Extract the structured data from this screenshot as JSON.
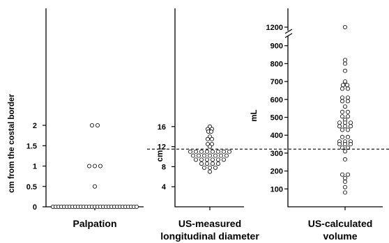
{
  "chart_data": [
    {
      "type": "scatter",
      "title": "",
      "xlabel": "Palpation",
      "ylabel": "cm from the costal border",
      "yticks": [
        "0",
        "0.5",
        "1",
        "1.5",
        "2"
      ],
      "ylim": [
        0,
        5.2
      ],
      "reference_line": null,
      "points": [
        {
          "x": -4,
          "y": 2
        },
        {
          "x": 4,
          "y": 2
        },
        {
          "x": -8,
          "y": 1
        },
        {
          "x": 0,
          "y": 1
        },
        {
          "x": 8,
          "y": 1
        },
        {
          "x": 0,
          "y": 0.5
        },
        {
          "x": -60,
          "y": 0
        },
        {
          "x": -56,
          "y": 0
        },
        {
          "x": -52,
          "y": 0
        },
        {
          "x": -48,
          "y": 0
        },
        {
          "x": -44,
          "y": 0
        },
        {
          "x": -40,
          "y": 0
        },
        {
          "x": -36,
          "y": 0
        },
        {
          "x": -32,
          "y": 0
        },
        {
          "x": -28,
          "y": 0
        },
        {
          "x": -24,
          "y": 0
        },
        {
          "x": -20,
          "y": 0
        },
        {
          "x": -16,
          "y": 0
        },
        {
          "x": -12,
          "y": 0
        },
        {
          "x": -8,
          "y": 0
        },
        {
          "x": -4,
          "y": 0
        },
        {
          "x": 0,
          "y": 0
        },
        {
          "x": 4,
          "y": 0
        },
        {
          "x": 8,
          "y": 0
        },
        {
          "x": 12,
          "y": 0
        },
        {
          "x": 16,
          "y": 0
        },
        {
          "x": 20,
          "y": 0
        },
        {
          "x": 24,
          "y": 0
        },
        {
          "x": 28,
          "y": 0
        },
        {
          "x": 32,
          "y": 0
        },
        {
          "x": 36,
          "y": 0
        },
        {
          "x": 40,
          "y": 0
        },
        {
          "x": 44,
          "y": 0
        },
        {
          "x": 48,
          "y": 0
        },
        {
          "x": 52,
          "y": 0
        },
        {
          "x": 56,
          "y": 0
        },
        {
          "x": 60,
          "y": 0
        }
      ]
    },
    {
      "type": "scatter",
      "title": "",
      "xlabel": "US-measured longitudinal diameter",
      "ylabel": "cm",
      "yticks": [
        "4",
        "8",
        "12",
        "16"
      ],
      "ylim": [
        0,
        36
      ],
      "reference_line": 11.5,
      "points": [
        {
          "x": 0,
          "y": 16
        },
        {
          "x": -3,
          "y": 15.5
        },
        {
          "x": 3,
          "y": 15.5
        },
        {
          "x": -2,
          "y": 15
        },
        {
          "x": 2,
          "y": 15
        },
        {
          "x": 0,
          "y": 14
        },
        {
          "x": -3,
          "y": 13.5
        },
        {
          "x": 3,
          "y": 13.5
        },
        {
          "x": -3,
          "y": 12.5
        },
        {
          "x": 3,
          "y": 12.5
        },
        {
          "x": 0,
          "y": 12
        },
        {
          "x": -28,
          "y": 11
        },
        {
          "x": -20,
          "y": 11
        },
        {
          "x": -12,
          "y": 11
        },
        {
          "x": -4,
          "y": 11
        },
        {
          "x": 4,
          "y": 11
        },
        {
          "x": 12,
          "y": 11
        },
        {
          "x": 20,
          "y": 11
        },
        {
          "x": 28,
          "y": 11
        },
        {
          "x": -24,
          "y": 10.2
        },
        {
          "x": -16,
          "y": 10.2
        },
        {
          "x": -8,
          "y": 10.2
        },
        {
          "x": 0,
          "y": 10.2
        },
        {
          "x": 8,
          "y": 10.2
        },
        {
          "x": 16,
          "y": 10.2
        },
        {
          "x": 24,
          "y": 10.2
        },
        {
          "x": -20,
          "y": 9.4
        },
        {
          "x": -12,
          "y": 9.4
        },
        {
          "x": -4,
          "y": 9.4
        },
        {
          "x": 4,
          "y": 9.4
        },
        {
          "x": 12,
          "y": 9.4
        },
        {
          "x": 20,
          "y": 9.4
        },
        {
          "x": -12,
          "y": 8.6
        },
        {
          "x": -4,
          "y": 8.6
        },
        {
          "x": 4,
          "y": 8.6
        },
        {
          "x": 12,
          "y": 8.6
        },
        {
          "x": -8,
          "y": 7.8
        },
        {
          "x": 0,
          "y": 7.8
        },
        {
          "x": 8,
          "y": 7.8
        },
        {
          "x": 0,
          "y": 7
        }
      ]
    },
    {
      "type": "scatter",
      "title": "",
      "xlabel": "US-calculated volume",
      "ylabel": "mL",
      "yticks": [
        "100",
        "200",
        "300",
        "400",
        "500",
        "600",
        "700",
        "800",
        "900",
        "1200"
      ],
      "ylim": [
        0,
        1300
      ],
      "axis_break": [
        950,
        1150
      ],
      "reference_line": 300,
      "points": [
        {
          "x": 0,
          "y": 1200
        },
        {
          "x": 0,
          "y": 820
        },
        {
          "x": 0,
          "y": 800
        },
        {
          "x": 0,
          "y": 760
        },
        {
          "x": 0,
          "y": 700
        },
        {
          "x": -3,
          "y": 680
        },
        {
          "x": 3,
          "y": 680
        },
        {
          "x": -4,
          "y": 660
        },
        {
          "x": 4,
          "y": 660
        },
        {
          "x": -4,
          "y": 610
        },
        {
          "x": 4,
          "y": 610
        },
        {
          "x": -4,
          "y": 590
        },
        {
          "x": 4,
          "y": 590
        },
        {
          "x": 0,
          "y": 560
        },
        {
          "x": -4,
          "y": 530
        },
        {
          "x": 4,
          "y": 530
        },
        {
          "x": -4,
          "y": 505
        },
        {
          "x": 4,
          "y": 505
        },
        {
          "x": 0,
          "y": 485
        },
        {
          "x": -8,
          "y": 470
        },
        {
          "x": 0,
          "y": 470
        },
        {
          "x": 8,
          "y": 470
        },
        {
          "x": -8,
          "y": 450
        },
        {
          "x": 0,
          "y": 450
        },
        {
          "x": 8,
          "y": 450
        },
        {
          "x": -4,
          "y": 430
        },
        {
          "x": 4,
          "y": 430
        },
        {
          "x": -4,
          "y": 390
        },
        {
          "x": 4,
          "y": 390
        },
        {
          "x": -8,
          "y": 365
        },
        {
          "x": 0,
          "y": 365
        },
        {
          "x": 8,
          "y": 365
        },
        {
          "x": -8,
          "y": 350
        },
        {
          "x": 0,
          "y": 350
        },
        {
          "x": 8,
          "y": 350
        },
        {
          "x": -4,
          "y": 330
        },
        {
          "x": 4,
          "y": 330
        },
        {
          "x": 0,
          "y": 310
        },
        {
          "x": 0,
          "y": 265
        },
        {
          "x": -4,
          "y": 180
        },
        {
          "x": 4,
          "y": 180
        },
        {
          "x": 0,
          "y": 160
        },
        {
          "x": 0,
          "y": 140
        },
        {
          "x": 0,
          "y": 110
        },
        {
          "x": 0,
          "y": 80
        }
      ]
    }
  ]
}
